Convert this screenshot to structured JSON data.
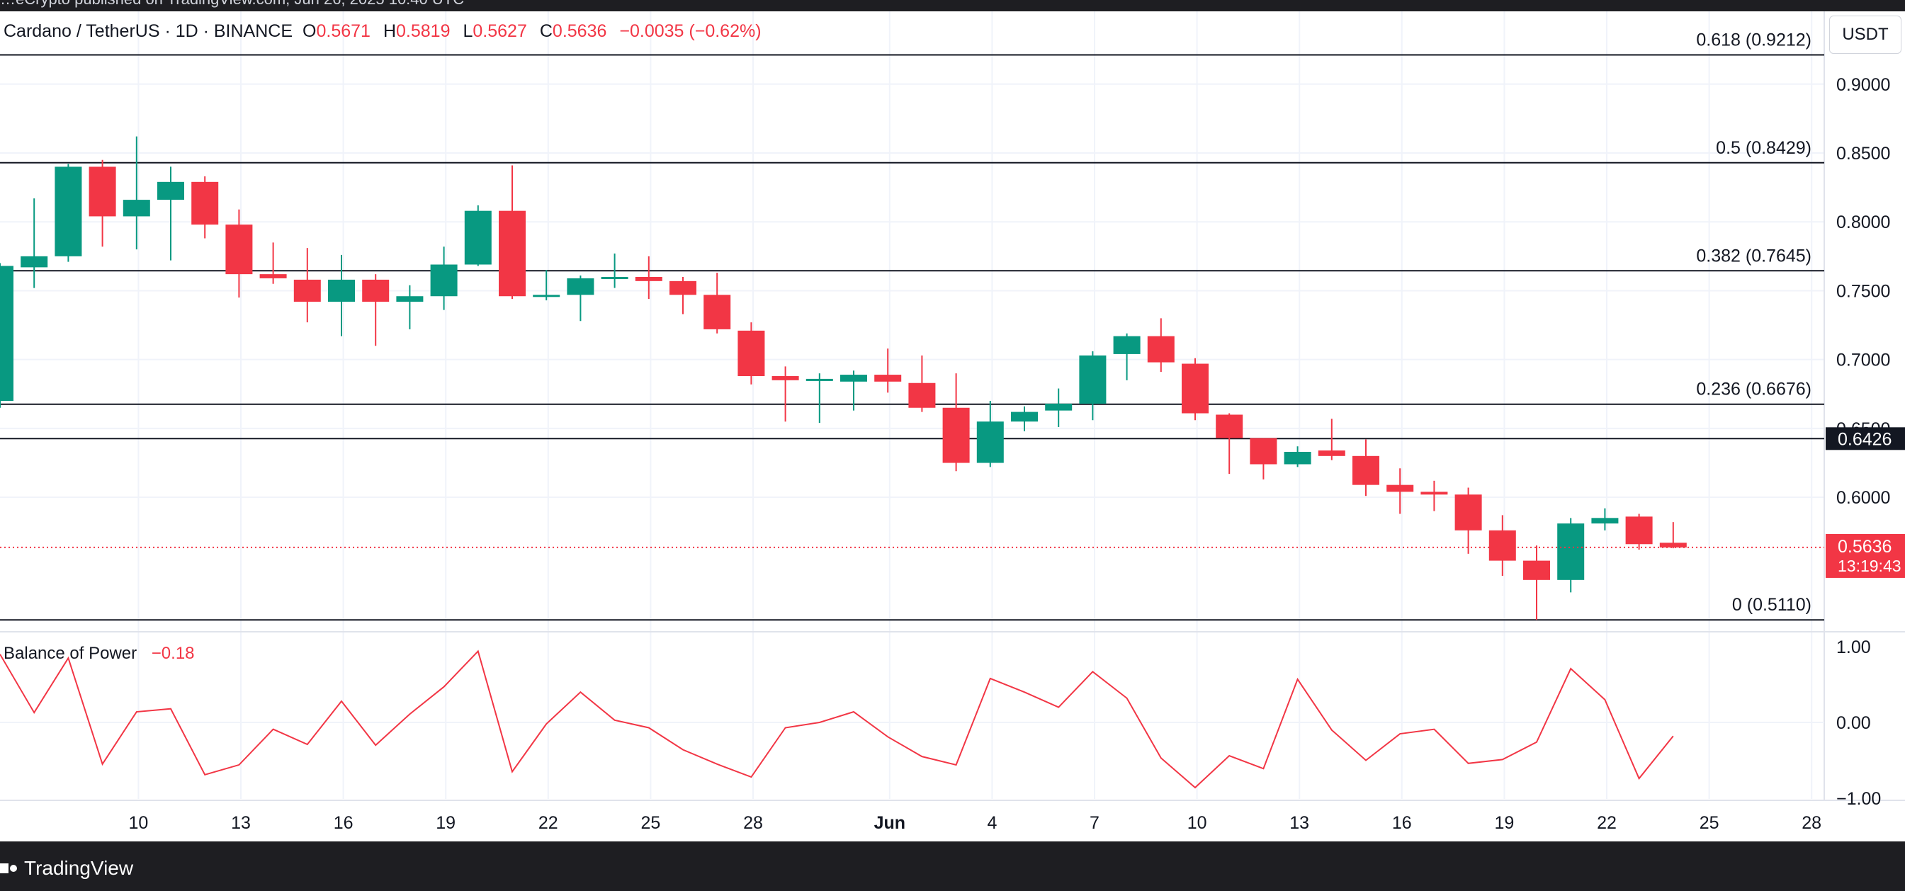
{
  "top_bar": {
    "text": "…eCrypto published on TradingView.com, Jun 26, 2025 10:40 UTC"
  },
  "header": {
    "symbol": "Cardano / TetherUS · 1D · BINANCE",
    "open_label": "O",
    "open": "0.5671",
    "high_label": "H",
    "high": "0.5819",
    "low_label": "L",
    "low": "0.5627",
    "close_label": "C",
    "close": "0.5636",
    "change": "−0.0035 (−0.62%)"
  },
  "currency": "USDT",
  "indicator": {
    "name": "Balance of Power",
    "value": "−0.18"
  },
  "footer": {
    "brand": "TradingView"
  },
  "colors": {
    "up": "#089981",
    "down": "#f23645",
    "grid": "#f0f3fa",
    "text": "#131722",
    "bop_line": "#f23645"
  },
  "chart_data": {
    "type": "candlestick",
    "price_ylim": [
      0.507,
      0.9405
    ],
    "price_ticks": [
      "0.9000",
      "0.8500",
      "0.8000",
      "0.7500",
      "0.7000",
      "0.6500",
      "0.6000"
    ],
    "x_ticks": [
      {
        "label": "10",
        "index": 2
      },
      {
        "label": "13",
        "index": 5
      },
      {
        "label": "16",
        "index": 8
      },
      {
        "label": "19",
        "index": 11
      },
      {
        "label": "22",
        "index": 14
      },
      {
        "label": "25",
        "index": 17
      },
      {
        "label": "28",
        "index": 20
      },
      {
        "label": "Jun",
        "index": 24
      },
      {
        "label": "4",
        "index": 27
      },
      {
        "label": "7",
        "index": 30
      },
      {
        "label": "10",
        "index": 33
      },
      {
        "label": "13",
        "index": 36
      },
      {
        "label": "16",
        "index": 39
      },
      {
        "label": "19",
        "index": 42
      },
      {
        "label": "22",
        "index": 45
      },
      {
        "label": "25",
        "index": 48
      },
      {
        "label": "28",
        "index": 51
      }
    ],
    "fib_levels": [
      {
        "label": "0.618 (0.9212)",
        "price": 0.9212
      },
      {
        "label": "0.5 (0.8429)",
        "price": 0.8429
      },
      {
        "label": "0.382 (0.7645)",
        "price": 0.7645
      },
      {
        "label": "0.236 (0.6676)",
        "price": 0.6676
      },
      {
        "label": "0 (0.5110)",
        "price": 0.511
      }
    ],
    "horizontal_line": {
      "price": 0.6426,
      "label": "0.6426"
    },
    "last_price": {
      "price": 0.5636,
      "label": "0.5636",
      "countdown": "13:19:43"
    },
    "candles": [
      {
        "o": 0.67,
        "h": 0.77,
        "l": 0.665,
        "c": 0.768
      },
      {
        "o": 0.767,
        "h": 0.817,
        "l": 0.752,
        "c": 0.775
      },
      {
        "o": 0.775,
        "h": 0.842,
        "l": 0.771,
        "c": 0.84
      },
      {
        "o": 0.84,
        "h": 0.845,
        "l": 0.782,
        "c": 0.804
      },
      {
        "o": 0.804,
        "h": 0.862,
        "l": 0.78,
        "c": 0.816
      },
      {
        "o": 0.816,
        "h": 0.84,
        "l": 0.772,
        "c": 0.829
      },
      {
        "o": 0.829,
        "h": 0.833,
        "l": 0.788,
        "c": 0.798
      },
      {
        "o": 0.798,
        "h": 0.809,
        "l": 0.745,
        "c": 0.762
      },
      {
        "o": 0.762,
        "h": 0.785,
        "l": 0.755,
        "c": 0.759
      },
      {
        "o": 0.758,
        "h": 0.781,
        "l": 0.727,
        "c": 0.742
      },
      {
        "o": 0.742,
        "h": 0.776,
        "l": 0.717,
        "c": 0.758
      },
      {
        "o": 0.758,
        "h": 0.762,
        "l": 0.71,
        "c": 0.742
      },
      {
        "o": 0.742,
        "h": 0.754,
        "l": 0.722,
        "c": 0.746
      },
      {
        "o": 0.746,
        "h": 0.782,
        "l": 0.736,
        "c": 0.769
      },
      {
        "o": 0.769,
        "h": 0.812,
        "l": 0.768,
        "c": 0.808
      },
      {
        "o": 0.808,
        "h": 0.841,
        "l": 0.744,
        "c": 0.746
      },
      {
        "o": 0.747,
        "h": 0.765,
        "l": 0.743,
        "c": 0.747
      },
      {
        "o": 0.747,
        "h": 0.761,
        "l": 0.728,
        "c": 0.759
      },
      {
        "o": 0.759,
        "h": 0.777,
        "l": 0.752,
        "c": 0.76
      },
      {
        "o": 0.76,
        "h": 0.775,
        "l": 0.744,
        "c": 0.757
      },
      {
        "o": 0.757,
        "h": 0.76,
        "l": 0.733,
        "c": 0.747
      },
      {
        "o": 0.747,
        "h": 0.763,
        "l": 0.719,
        "c": 0.722
      },
      {
        "o": 0.721,
        "h": 0.727,
        "l": 0.682,
        "c": 0.688
      },
      {
        "o": 0.688,
        "h": 0.695,
        "l": 0.655,
        "c": 0.685
      },
      {
        "o": 0.686,
        "h": 0.69,
        "l": 0.654,
        "c": 0.686
      },
      {
        "o": 0.684,
        "h": 0.692,
        "l": 0.663,
        "c": 0.689
      },
      {
        "o": 0.689,
        "h": 0.708,
        "l": 0.676,
        "c": 0.684
      },
      {
        "o": 0.683,
        "h": 0.703,
        "l": 0.662,
        "c": 0.665
      },
      {
        "o": 0.665,
        "h": 0.69,
        "l": 0.619,
        "c": 0.625
      },
      {
        "o": 0.625,
        "h": 0.67,
        "l": 0.622,
        "c": 0.655
      },
      {
        "o": 0.655,
        "h": 0.666,
        "l": 0.648,
        "c": 0.662
      },
      {
        "o": 0.663,
        "h": 0.679,
        "l": 0.651,
        "c": 0.668
      },
      {
        "o": 0.668,
        "h": 0.706,
        "l": 0.656,
        "c": 0.703
      },
      {
        "o": 0.704,
        "h": 0.719,
        "l": 0.685,
        "c": 0.717
      },
      {
        "o": 0.717,
        "h": 0.73,
        "l": 0.691,
        "c": 0.698
      },
      {
        "o": 0.697,
        "h": 0.701,
        "l": 0.656,
        "c": 0.661
      },
      {
        "o": 0.66,
        "h": 0.661,
        "l": 0.617,
        "c": 0.643
      },
      {
        "o": 0.643,
        "h": 0.643,
        "l": 0.613,
        "c": 0.624
      },
      {
        "o": 0.624,
        "h": 0.637,
        "l": 0.622,
        "c": 0.633
      },
      {
        "o": 0.634,
        "h": 0.657,
        "l": 0.627,
        "c": 0.63
      },
      {
        "o": 0.63,
        "h": 0.642,
        "l": 0.601,
        "c": 0.609
      },
      {
        "o": 0.609,
        "h": 0.621,
        "l": 0.588,
        "c": 0.604
      },
      {
        "o": 0.604,
        "h": 0.612,
        "l": 0.59,
        "c": 0.602
      },
      {
        "o": 0.602,
        "h": 0.607,
        "l": 0.559,
        "c": 0.576
      },
      {
        "o": 0.576,
        "h": 0.587,
        "l": 0.543,
        "c": 0.554
      },
      {
        "o": 0.554,
        "h": 0.565,
        "l": 0.511,
        "c": 0.54
      },
      {
        "o": 0.54,
        "h": 0.585,
        "l": 0.531,
        "c": 0.581
      },
      {
        "o": 0.581,
        "h": 0.592,
        "l": 0.576,
        "c": 0.585
      },
      {
        "o": 0.586,
        "h": 0.588,
        "l": 0.562,
        "c": 0.566
      },
      {
        "o": 0.567,
        "h": 0.582,
        "l": 0.563,
        "c": 0.5636
      }
    ],
    "bop": {
      "ylim": [
        -1.0,
        1.0
      ],
      "ticks": [
        "1.00",
        "0.00",
        "−1.00"
      ],
      "values": [
        0.9,
        0.13,
        0.85,
        -0.55,
        0.14,
        0.18,
        -0.69,
        -0.56,
        -0.09,
        -0.29,
        0.28,
        -0.3,
        0.11,
        0.47,
        0.94,
        -0.65,
        -0.02,
        0.4,
        0.03,
        -0.07,
        -0.36,
        -0.55,
        -0.72,
        -0.07,
        0.0,
        0.14,
        -0.19,
        -0.45,
        -0.56,
        0.58,
        0.4,
        0.2,
        0.67,
        0.32,
        -0.47,
        -0.86,
        -0.44,
        -0.61,
        0.57,
        -0.1,
        -0.5,
        -0.15,
        -0.09,
        -0.54,
        -0.49,
        -0.26,
        0.71,
        0.3,
        -0.74,
        -0.18
      ]
    }
  }
}
